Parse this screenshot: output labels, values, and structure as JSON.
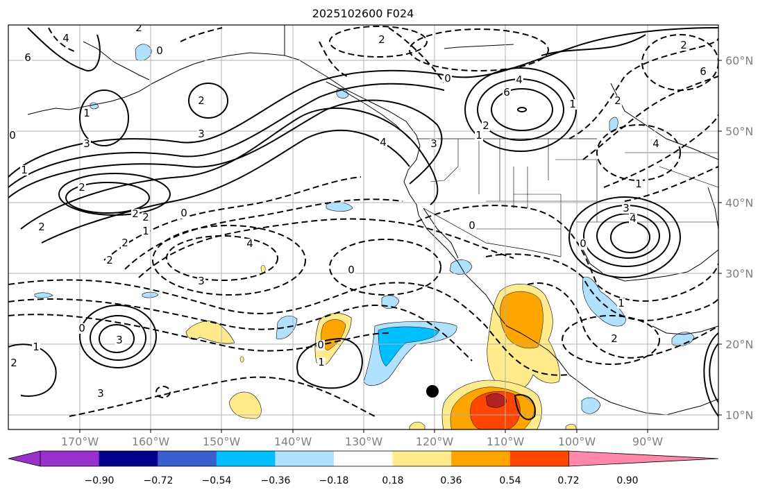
{
  "map": {
    "title": "2025102600 F024",
    "lon_labels": [
      "170°W",
      "160°W",
      "150°W",
      "140°W",
      "130°W",
      "120°W",
      "110°W",
      "100°W",
      "90°W"
    ],
    "lat_labels": [
      "60°N",
      "50°N",
      "40°N",
      "30°N",
      "20°N",
      "10°N"
    ],
    "extent": {
      "lon_min": -180,
      "lon_max": -80,
      "lat_min": 8,
      "lat_max": 65
    }
  },
  "colorbar": {
    "ticks": [
      "−0.90",
      "−0.72",
      "−0.54",
      "−0.36",
      "−0.18",
      "0.18",
      "0.36",
      "0.54",
      "0.72",
      "0.90"
    ],
    "colors": [
      "#9932cc",
      "#00008b",
      "#3a5fcd",
      "#00bfff",
      "#b0e2ff",
      "#ffffff",
      "#ffea8c",
      "#ffa500",
      "#ff4500",
      "#b22222",
      "#ff88aa"
    ]
  },
  "contour_labels": [
    "6",
    "4",
    "2",
    "0",
    "1",
    "2",
    "0",
    "3",
    "1",
    "2",
    "2",
    "3",
    "2",
    "2",
    "1",
    "0",
    "2",
    "4",
    "3",
    "0",
    "2",
    "0",
    "4",
    "6",
    "1",
    "2",
    "4",
    "3",
    "0",
    "1",
    "2",
    "4",
    "6",
    "1",
    "3",
    "4",
    "0",
    "1",
    "2",
    "2",
    "3",
    "0",
    "1",
    "2",
    "3",
    "0",
    "1",
    "2"
  ],
  "marker": {
    "label": "point-marker"
  },
  "colors": {
    "frame": "#000000",
    "grid": "#b0b0b0",
    "contour": "#000000",
    "coast": "#000000"
  }
}
